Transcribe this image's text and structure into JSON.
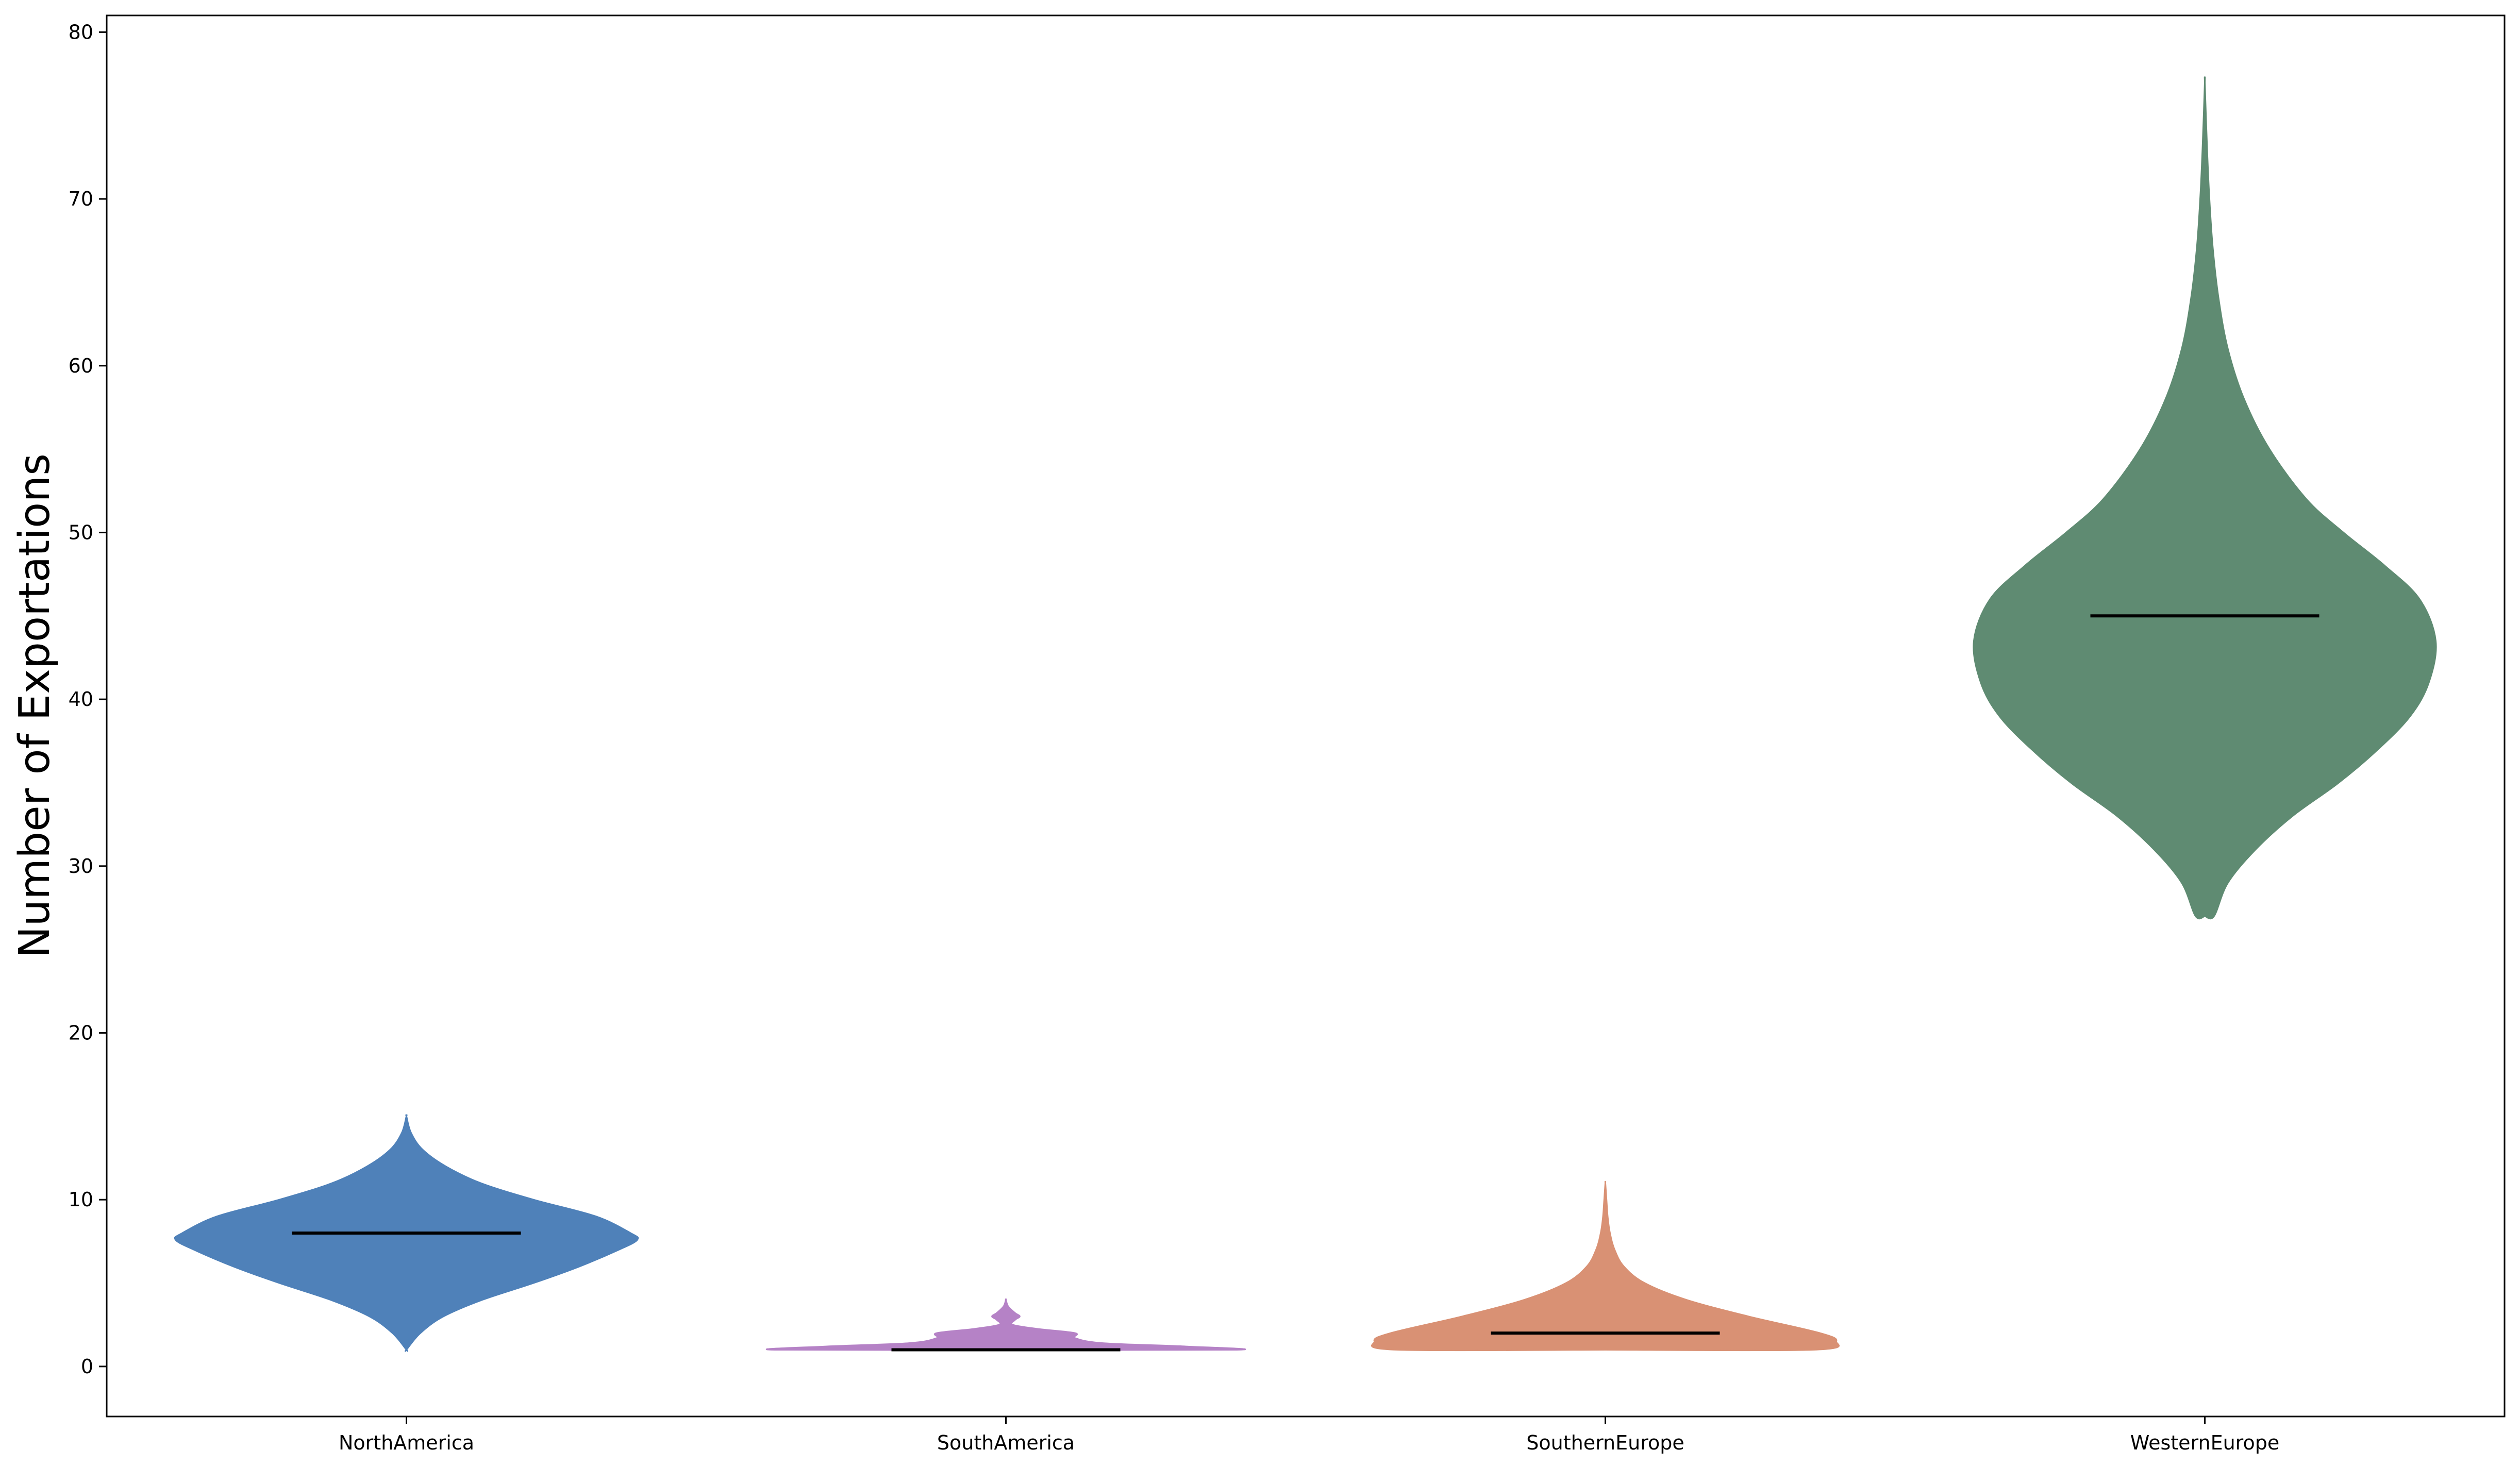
{
  "chart_data": {
    "type": "violin",
    "title": "",
    "xlabel": "",
    "ylabel": "Number of Exportations",
    "ylim": [
      -3,
      81
    ],
    "yticks": [
      0,
      10,
      20,
      30,
      40,
      50,
      60,
      70,
      80
    ],
    "grid": false,
    "categories": [
      "NorthAmerica",
      "SouthAmerica",
      "SouthernEurope",
      "WesternEurope"
    ],
    "series": [
      {
        "category": "NorthAmerica",
        "color": "#4f81b9",
        "min": 1,
        "max": 15,
        "median": 8,
        "profile": [
          [
            1,
            0.0
          ],
          [
            2,
            0.06
          ],
          [
            3,
            0.16
          ],
          [
            4,
            0.33
          ],
          [
            5,
            0.55
          ],
          [
            6,
            0.75
          ],
          [
            7,
            0.92
          ],
          [
            7.6,
            1.0
          ],
          [
            8,
            0.97
          ],
          [
            9,
            0.82
          ],
          [
            10,
            0.55
          ],
          [
            11,
            0.32
          ],
          [
            12,
            0.17
          ],
          [
            13,
            0.07
          ],
          [
            14,
            0.02
          ],
          [
            15,
            0.0
          ]
        ]
      },
      {
        "category": "SouthAmerica",
        "color": "#b582c6",
        "min": 1,
        "max": 4,
        "median": 1,
        "profile": [
          [
            1,
            1.0
          ],
          [
            1.2,
            0.78
          ],
          [
            1.4,
            0.42
          ],
          [
            1.7,
            0.3
          ],
          [
            2,
            0.3
          ],
          [
            2.25,
            0.14
          ],
          [
            2.5,
            0.03
          ],
          [
            2.8,
            0.04
          ],
          [
            3,
            0.06
          ],
          [
            3.2,
            0.04
          ],
          [
            3.6,
            0.01
          ],
          [
            4,
            0.0
          ]
        ]
      },
      {
        "category": "SouthernEurope",
        "color": "#d99174",
        "min": 1,
        "max": 11,
        "median": 2,
        "profile": [
          [
            1,
            0.9
          ],
          [
            1.5,
            1.0
          ],
          [
            2,
            0.93
          ],
          [
            3,
            0.62
          ],
          [
            4,
            0.35
          ],
          [
            5,
            0.17
          ],
          [
            6,
            0.08
          ],
          [
            7,
            0.04
          ],
          [
            8,
            0.02
          ],
          [
            9,
            0.01
          ],
          [
            10,
            0.005
          ],
          [
            11,
            0.0
          ]
        ]
      },
      {
        "category": "WesternEurope",
        "color": "#5f8b72",
        "min": 27,
        "max": 77,
        "median": 45,
        "profile": [
          [
            27,
            0.04
          ],
          [
            29,
            0.1
          ],
          [
            31,
            0.22
          ],
          [
            33,
            0.38
          ],
          [
            35,
            0.58
          ],
          [
            37,
            0.75
          ],
          [
            39,
            0.89
          ],
          [
            41,
            0.97
          ],
          [
            43.5,
            1.0
          ],
          [
            46,
            0.93
          ],
          [
            48,
            0.78
          ],
          [
            50,
            0.6
          ],
          [
            52,
            0.44
          ],
          [
            55,
            0.28
          ],
          [
            58,
            0.17
          ],
          [
            61,
            0.1
          ],
          [
            64,
            0.06
          ],
          [
            67,
            0.035
          ],
          [
            70,
            0.02
          ],
          [
            73,
            0.01
          ],
          [
            77,
            0.0
          ]
        ]
      }
    ],
    "median_line_color": "#000000"
  }
}
